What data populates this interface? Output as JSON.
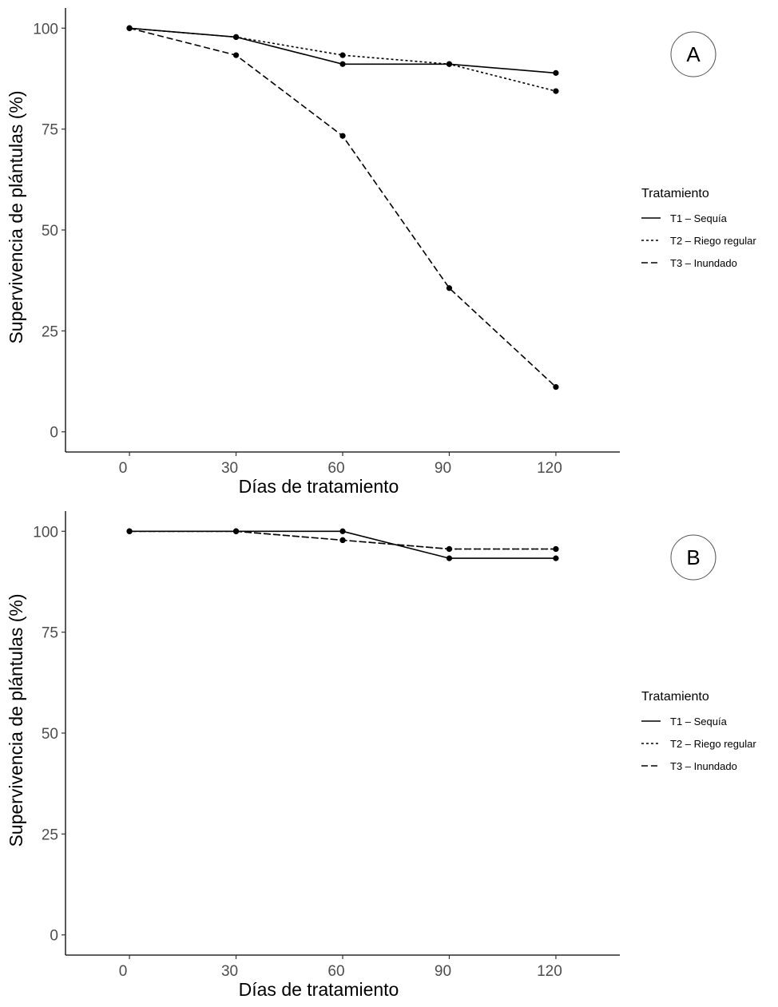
{
  "chart_data": [
    {
      "type": "line",
      "panel_label": "A",
      "xlabel": "Días de tratamiento",
      "ylabel": "Supervivencia de plántulas (%)",
      "x": [
        0,
        30,
        60,
        90,
        120
      ],
      "x_tick_labels": [
        "0",
        "30",
        "60",
        "90",
        "120"
      ],
      "y_tick_labels": [
        "0",
        "25",
        "50",
        "75",
        "100"
      ],
      "xlim": [
        -18,
        138
      ],
      "ylim": [
        -5,
        105
      ],
      "grid": false,
      "legend": {
        "title": "Tratamiento",
        "placement": "right",
        "entries": [
          "T1 – Sequía",
          "T2 – Riego regular",
          "T3 – Inundado"
        ]
      },
      "series": [
        {
          "name": "T1 – Sequía",
          "dash": "solid",
          "values": [
            100,
            97.8,
            91.1,
            91.1,
            88.9
          ]
        },
        {
          "name": "T2 – Riego regular",
          "dash": "dotted",
          "values": [
            100,
            97.8,
            93.3,
            91.1,
            84.4
          ]
        },
        {
          "name": "T3 – Inundado",
          "dash": "dashed",
          "values": [
            100,
            93.3,
            73.3,
            35.6,
            11.1
          ]
        }
      ]
    },
    {
      "type": "line",
      "panel_label": "B",
      "xlabel": "Días de tratamiento",
      "ylabel": "Supervivencia de plántulas (%)",
      "x": [
        0,
        30,
        60,
        90,
        120
      ],
      "x_tick_labels": [
        "0",
        "30",
        "60",
        "90",
        "120"
      ],
      "y_tick_labels": [
        "0",
        "25",
        "50",
        "75",
        "100"
      ],
      "xlim": [
        -18,
        138
      ],
      "ylim": [
        -5,
        105
      ],
      "grid": false,
      "legend": {
        "title": "Tratamiento",
        "placement": "right",
        "entries": [
          "T1 – Sequía",
          "T2 – Riego regular",
          "T3 – Inundado"
        ]
      },
      "series": [
        {
          "name": "T1 – Sequía",
          "dash": "solid",
          "values": [
            100,
            100,
            100,
            93.3,
            93.3
          ]
        },
        {
          "name": "T2 – Riego regular",
          "dash": "dotted",
          "values": [
            100,
            100,
            97.8,
            95.6,
            95.6
          ]
        },
        {
          "name": "T3 – Inundado",
          "dash": "dashed",
          "values": [
            100,
            100,
            97.8,
            95.6,
            95.6
          ]
        }
      ]
    }
  ]
}
